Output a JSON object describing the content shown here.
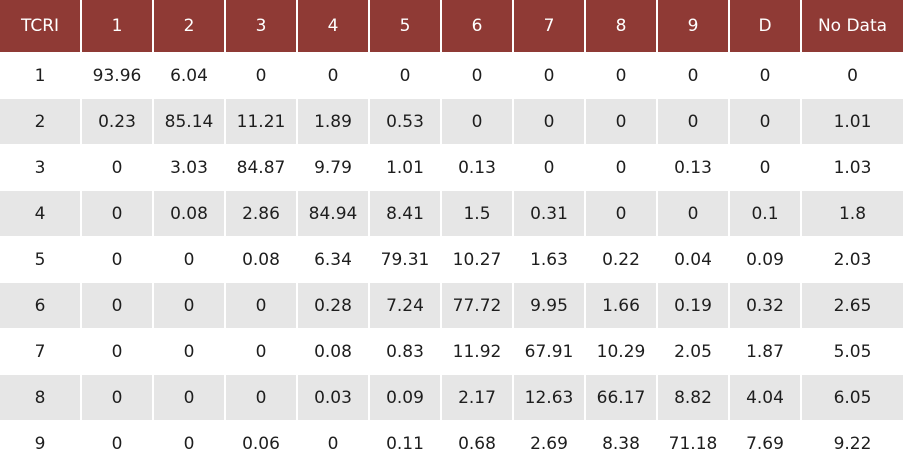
{
  "table": {
    "headers": [
      "TCRI",
      "1",
      "2",
      "3",
      "4",
      "5",
      "6",
      "7",
      "8",
      "9",
      "D",
      "No Data"
    ],
    "rows": [
      [
        "1",
        "93.96",
        "6.04",
        "0",
        "0",
        "0",
        "0",
        "0",
        "0",
        "0",
        "0",
        "0"
      ],
      [
        "2",
        "0.23",
        "85.14",
        "11.21",
        "1.89",
        "0.53",
        "0",
        "0",
        "0",
        "0",
        "0",
        "1.01"
      ],
      [
        "3",
        "0",
        "3.03",
        "84.87",
        "9.79",
        "1.01",
        "0.13",
        "0",
        "0",
        "0.13",
        "0",
        "1.03"
      ],
      [
        "4",
        "0",
        "0.08",
        "2.86",
        "84.94",
        "8.41",
        "1.5",
        "0.31",
        "0",
        "0",
        "0.1",
        "1.8"
      ],
      [
        "5",
        "0",
        "0",
        "0.08",
        "6.34",
        "79.31",
        "10.27",
        "1.63",
        "0.22",
        "0.04",
        "0.09",
        "2.03"
      ],
      [
        "6",
        "0",
        "0",
        "0",
        "0.28",
        "7.24",
        "77.72",
        "9.95",
        "1.66",
        "0.19",
        "0.32",
        "2.65"
      ],
      [
        "7",
        "0",
        "0",
        "0",
        "0.08",
        "0.83",
        "11.92",
        "67.91",
        "10.29",
        "2.05",
        "1.87",
        "5.05"
      ],
      [
        "8",
        "0",
        "0",
        "0",
        "0.03",
        "0.09",
        "2.17",
        "12.63",
        "66.17",
        "8.82",
        "4.04",
        "6.05"
      ],
      [
        "9",
        "0",
        "0",
        "0.06",
        "0",
        "0.11",
        "0.68",
        "2.69",
        "8.38",
        "71.18",
        "7.69",
        "9.22"
      ]
    ]
  },
  "colors": {
    "header_bg": "#8f3a35",
    "header_text": "#ffffff",
    "stripe": "#e6e6e6"
  }
}
